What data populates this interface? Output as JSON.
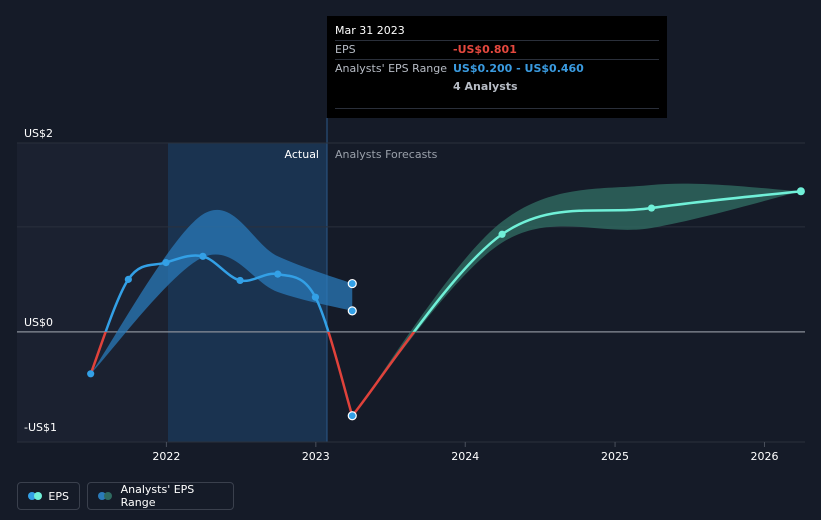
{
  "chart_data": {
    "type": "line",
    "title": "",
    "y_tick_labels": [
      "US$2",
      "US$0",
      "-US$1"
    ],
    "x_tick_labels": [
      "2022",
      "2023",
      "2024",
      "2025",
      "2026"
    ],
    "ylim": [
      -1.05,
      1.8
    ],
    "section_labels": {
      "actual": "Actual",
      "forecast": "Analysts Forecasts"
    },
    "series": [
      {
        "name": "EPS",
        "kind": "actual",
        "points": [
          [
            "2021-06-30",
            -0.4
          ],
          [
            "2021-09-30",
            0.5
          ],
          [
            "2021-12-31",
            0.66
          ],
          [
            "2022-03-31",
            0.72
          ],
          [
            "2022-06-30",
            0.49
          ],
          [
            "2022-09-30",
            0.55
          ],
          [
            "2022-12-31",
            0.33
          ],
          [
            "2023-03-31",
            -0.8
          ]
        ]
      },
      {
        "name": "EPS",
        "kind": "forecast",
        "points": [
          [
            "2023-03-31",
            -0.8
          ],
          [
            "2024-03-31",
            0.93
          ],
          [
            "2025-03-31",
            1.18
          ],
          [
            "2026-03-31",
            1.34
          ]
        ]
      }
    ],
    "actual_range": {
      "name": "Analysts' EPS Range",
      "points": [
        [
          "2021-06-30",
          -0.4,
          -0.4
        ],
        [
          "2022-03-31",
          1.12,
          0.71
        ],
        [
          "2022-09-30",
          0.72,
          0.38
        ],
        [
          "2023-03-31",
          0.46,
          0.2
        ]
      ]
    },
    "forecast_range": {
      "name": "Analysts' EPS Range",
      "points": [
        [
          "2023-03-31",
          -0.8,
          -0.8
        ],
        [
          "2024-03-31",
          1.05,
          0.85
        ],
        [
          "2025-03-31",
          1.4,
          0.99
        ],
        [
          "2026-03-31",
          1.34,
          1.34
        ]
      ]
    },
    "colors": {
      "positive_line": "#33a0e6",
      "negative_line": "#e0423b",
      "forecast_line": "#70f0d8",
      "actual_band": "#2a7ab8",
      "forecast_band": "#2f6a60",
      "zero_line": "#8a8f99",
      "grid": "#2a303c"
    }
  },
  "tooltip": {
    "date": "Mar 31 2023",
    "rows": [
      {
        "label": "EPS",
        "value": "-US$0.801"
      },
      {
        "label": "Analysts' EPS Range",
        "value": "US$0.200 - US$0.460"
      },
      {
        "label": "",
        "value": "4 Analysts"
      }
    ]
  },
  "legend": {
    "eps_label": "EPS",
    "range_label": "Analysts' EPS Range",
    "eps_colors": [
      "#33a0e6",
      "#70f0d8"
    ],
    "range_colors": [
      "#2a7ab8",
      "#2f6a60"
    ]
  }
}
